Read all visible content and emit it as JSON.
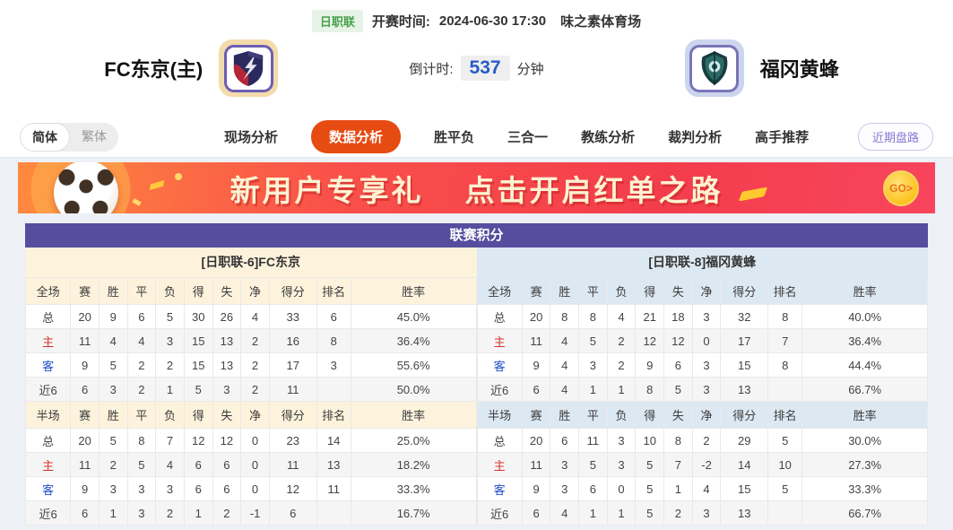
{
  "header": {
    "league_badge": "日职联",
    "kickoff_label": "开赛时间:",
    "kickoff_time": "2024-06-30 17:30",
    "venue": "味之素体育场",
    "home_team": "FC东京(主)",
    "away_team": "福冈黄蜂",
    "countdown_label": "倒计时:",
    "countdown_value": "537",
    "countdown_unit": "分钟"
  },
  "nav": {
    "lang": [
      "简体",
      "繁体"
    ],
    "tabs": [
      {
        "label": "现场分析",
        "active": false
      },
      {
        "label": "数据分析",
        "active": true
      },
      {
        "label": "胜平负",
        "active": false
      },
      {
        "label": "三合一",
        "active": false
      },
      {
        "label": "教练分析",
        "active": false
      },
      {
        "label": "裁判分析",
        "active": false
      },
      {
        "label": "高手推荐",
        "active": false
      }
    ],
    "recent_button": "近期盘路"
  },
  "banner": {
    "text1": "新用户专享礼",
    "text2": "点击开启红单之路",
    "go_label": "GO>"
  },
  "standings": {
    "title": "联赛积分",
    "home_header": "[日职联-6]FC东京",
    "away_header": "[日职联-8]福冈黄蜂",
    "columns_full": [
      "全场",
      "赛",
      "胜",
      "平",
      "负",
      "得",
      "失",
      "净",
      "得分",
      "排名",
      "胜率"
    ],
    "columns_half": [
      "半场",
      "赛",
      "胜",
      "平",
      "负",
      "得",
      "失",
      "净",
      "得分",
      "排名",
      "胜率"
    ],
    "home": {
      "full": [
        {
          "label": "总",
          "cells": [
            "20",
            "9",
            "6",
            "5",
            "30",
            "26",
            "4",
            "33",
            "6",
            "45.0%"
          ]
        },
        {
          "label": "主",
          "cells": [
            "11",
            "4",
            "4",
            "3",
            "15",
            "13",
            "2",
            "16",
            "8",
            "36.4%"
          ]
        },
        {
          "label": "客",
          "cells": [
            "9",
            "5",
            "2",
            "2",
            "15",
            "13",
            "2",
            "17",
            "3",
            "55.6%"
          ]
        },
        {
          "label": "近6",
          "cells": [
            "6",
            "3",
            "2",
            "1",
            "5",
            "3",
            "2",
            "11",
            "",
            "50.0%"
          ]
        }
      ],
      "half": [
        {
          "label": "总",
          "cells": [
            "20",
            "5",
            "8",
            "7",
            "12",
            "12",
            "0",
            "23",
            "14",
            "25.0%"
          ]
        },
        {
          "label": "主",
          "cells": [
            "11",
            "2",
            "5",
            "4",
            "6",
            "6",
            "0",
            "11",
            "13",
            "18.2%"
          ]
        },
        {
          "label": "客",
          "cells": [
            "9",
            "3",
            "3",
            "3",
            "6",
            "6",
            "0",
            "12",
            "11",
            "33.3%"
          ]
        },
        {
          "label": "近6",
          "cells": [
            "6",
            "1",
            "3",
            "2",
            "1",
            "2",
            "-1",
            "6",
            "",
            "16.7%"
          ]
        }
      ]
    },
    "away": {
      "full": [
        {
          "label": "总",
          "cells": [
            "20",
            "8",
            "8",
            "4",
            "21",
            "18",
            "3",
            "32",
            "8",
            "40.0%"
          ]
        },
        {
          "label": "主",
          "cells": [
            "11",
            "4",
            "5",
            "2",
            "12",
            "12",
            "0",
            "17",
            "7",
            "36.4%"
          ]
        },
        {
          "label": "客",
          "cells": [
            "9",
            "4",
            "3",
            "2",
            "9",
            "6",
            "3",
            "15",
            "8",
            "44.4%"
          ]
        },
        {
          "label": "近6",
          "cells": [
            "6",
            "4",
            "1",
            "1",
            "8",
            "5",
            "3",
            "13",
            "",
            "66.7%"
          ]
        }
      ],
      "half": [
        {
          "label": "总",
          "cells": [
            "20",
            "6",
            "11",
            "3",
            "10",
            "8",
            "2",
            "29",
            "5",
            "30.0%"
          ]
        },
        {
          "label": "主",
          "cells": [
            "11",
            "3",
            "5",
            "3",
            "5",
            "7",
            "-2",
            "14",
            "10",
            "27.3%"
          ]
        },
        {
          "label": "客",
          "cells": [
            "9",
            "3",
            "6",
            "0",
            "5",
            "1",
            "4",
            "15",
            "5",
            "33.3%"
          ]
        },
        {
          "label": "近6",
          "cells": [
            "6",
            "4",
            "1",
            "1",
            "5",
            "2",
            "3",
            "13",
            "",
            "66.7%"
          ]
        }
      ]
    }
  },
  "colors": {
    "accent_orange": "#e64b12",
    "header_purple": "#564d9e",
    "home_section_bg": "#fdf3dd",
    "away_section_bg": "#dde9f2",
    "home_row_red": "#d9342b",
    "away_row_blue": "#1f4fc4",
    "countdown_blue": "#2a5cc8",
    "badge_green": "#48a04a"
  }
}
